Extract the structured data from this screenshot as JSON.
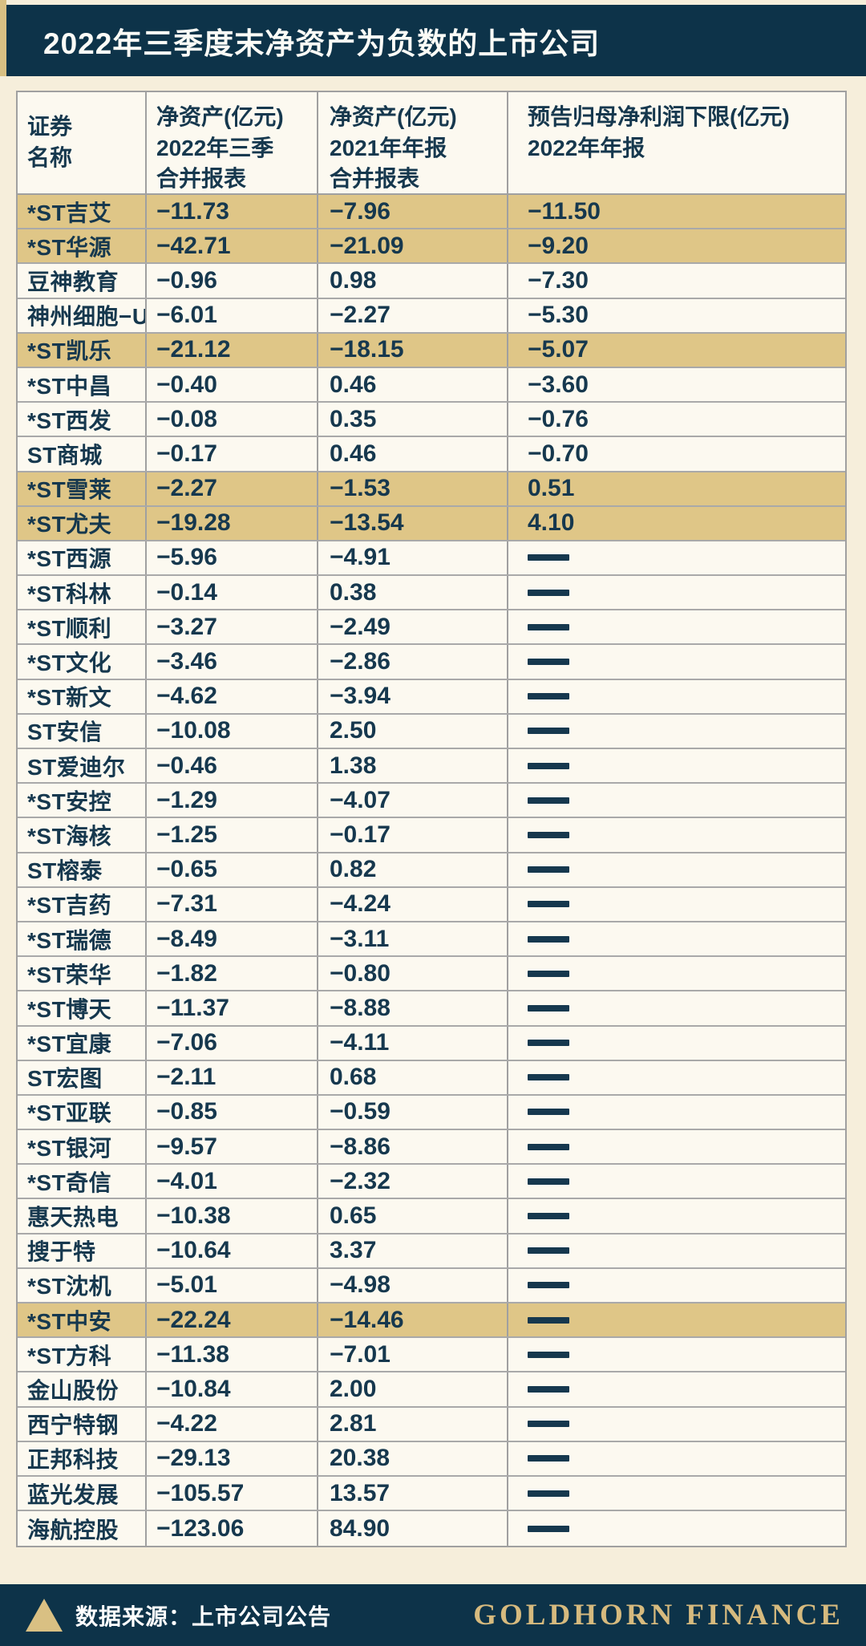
{
  "title": "2022年三季度末净资产为负数的上市公司",
  "chart_data": {
    "type": "table",
    "title": "2022年三季度末净资产为负数的上市公司",
    "columns": [
      "证券\n名称",
      "净资产(亿元)\n2022年三季\n合并报表",
      "净资产(亿元)\n2021年年报\n合并报表",
      "预告归母净利润下限(亿元)\n2022年年报"
    ],
    "no_data_symbol": "—",
    "highlight_color": "#dfc687",
    "rows": [
      {
        "name": "*ST吉艾",
        "na_2022q3": "−11.73",
        "na_2021": "−7.96",
        "forecast": "−11.50",
        "hl": true
      },
      {
        "name": "*ST华源",
        "na_2022q3": "−42.71",
        "na_2021": "−21.09",
        "forecast": "−9.20",
        "hl": true
      },
      {
        "name": "豆神教育",
        "na_2022q3": "−0.96",
        "na_2021": "0.98",
        "forecast": "−7.30",
        "hl": false
      },
      {
        "name": "神州细胞−U",
        "na_2022q3": "−6.01",
        "na_2021": "−2.27",
        "forecast": "−5.30",
        "hl": false
      },
      {
        "name": "*ST凯乐",
        "na_2022q3": "−21.12",
        "na_2021": "−18.15",
        "forecast": "−5.07",
        "hl": true
      },
      {
        "name": "*ST中昌",
        "na_2022q3": "−0.40",
        "na_2021": "0.46",
        "forecast": "−3.60",
        "hl": false
      },
      {
        "name": "*ST西发",
        "na_2022q3": "−0.08",
        "na_2021": "0.35",
        "forecast": "−0.76",
        "hl": false
      },
      {
        "name": "ST商城",
        "na_2022q3": "−0.17",
        "na_2021": "0.46",
        "forecast": "−0.70",
        "hl": false
      },
      {
        "name": "*ST雪莱",
        "na_2022q3": "−2.27",
        "na_2021": "−1.53",
        "forecast": "0.51",
        "hl": true
      },
      {
        "name": "*ST尤夫",
        "na_2022q3": "−19.28",
        "na_2021": "−13.54",
        "forecast": "4.10",
        "hl": true
      },
      {
        "name": "*ST西源",
        "na_2022q3": "−5.96",
        "na_2021": "−4.91",
        "forecast": "—",
        "hl": false
      },
      {
        "name": "*ST科林",
        "na_2022q3": "−0.14",
        "na_2021": "0.38",
        "forecast": "—",
        "hl": false
      },
      {
        "name": "*ST顺利",
        "na_2022q3": "−3.27",
        "na_2021": "−2.49",
        "forecast": "—",
        "hl": false
      },
      {
        "name": "*ST文化",
        "na_2022q3": "−3.46",
        "na_2021": "−2.86",
        "forecast": "—",
        "hl": false
      },
      {
        "name": "*ST新文",
        "na_2022q3": "−4.62",
        "na_2021": "−3.94",
        "forecast": "—",
        "hl": false
      },
      {
        "name": "ST安信",
        "na_2022q3": "−10.08",
        "na_2021": "2.50",
        "forecast": "—",
        "hl": false
      },
      {
        "name": "ST爱迪尔",
        "na_2022q3": "−0.46",
        "na_2021": "1.38",
        "forecast": "—",
        "hl": false
      },
      {
        "name": "*ST安控",
        "na_2022q3": "−1.29",
        "na_2021": "−4.07",
        "forecast": "—",
        "hl": false
      },
      {
        "name": "*ST海核",
        "na_2022q3": "−1.25",
        "na_2021": "−0.17",
        "forecast": "—",
        "hl": false
      },
      {
        "name": "ST榕泰",
        "na_2022q3": "−0.65",
        "na_2021": "0.82",
        "forecast": "—",
        "hl": false
      },
      {
        "name": "*ST吉药",
        "na_2022q3": "−7.31",
        "na_2021": "−4.24",
        "forecast": "—",
        "hl": false
      },
      {
        "name": "*ST瑞德",
        "na_2022q3": "−8.49",
        "na_2021": "−3.11",
        "forecast": "—",
        "hl": false
      },
      {
        "name": "*ST荣华",
        "na_2022q3": "−1.82",
        "na_2021": "−0.80",
        "forecast": "—",
        "hl": false
      },
      {
        "name": "*ST博天",
        "na_2022q3": "−11.37",
        "na_2021": "−8.88",
        "forecast": "—",
        "hl": false
      },
      {
        "name": "*ST宜康",
        "na_2022q3": "−7.06",
        "na_2021": "−4.11",
        "forecast": "—",
        "hl": false
      },
      {
        "name": "ST宏图",
        "na_2022q3": "−2.11",
        "na_2021": "0.68",
        "forecast": "—",
        "hl": false
      },
      {
        "name": "*ST亚联",
        "na_2022q3": "−0.85",
        "na_2021": "−0.59",
        "forecast": "—",
        "hl": false
      },
      {
        "name": "*ST银河",
        "na_2022q3": "−9.57",
        "na_2021": "−8.86",
        "forecast": "—",
        "hl": false
      },
      {
        "name": "*ST奇信",
        "na_2022q3": "−4.01",
        "na_2021": "−2.32",
        "forecast": "—",
        "hl": false
      },
      {
        "name": "惠天热电",
        "na_2022q3": "−10.38",
        "na_2021": "0.65",
        "forecast": "—",
        "hl": false
      },
      {
        "name": "搜于特",
        "na_2022q3": "−10.64",
        "na_2021": "3.37",
        "forecast": "—",
        "hl": false
      },
      {
        "name": "*ST沈机",
        "na_2022q3": "−5.01",
        "na_2021": "−4.98",
        "forecast": "—",
        "hl": false
      },
      {
        "name": "*ST中安",
        "na_2022q3": "−22.24",
        "na_2021": "−14.46",
        "forecast": "—",
        "hl": true
      },
      {
        "name": "*ST方科",
        "na_2022q3": "−11.38",
        "na_2021": "−7.01",
        "forecast": "—",
        "hl": false
      },
      {
        "name": "金山股份",
        "na_2022q3": "−10.84",
        "na_2021": "2.00",
        "forecast": "—",
        "hl": false
      },
      {
        "name": "西宁特钢",
        "na_2022q3": "−4.22",
        "na_2021": "2.81",
        "forecast": "—",
        "hl": false
      },
      {
        "name": "正邦科技",
        "na_2022q3": "−29.13",
        "na_2021": "20.38",
        "forecast": "—",
        "hl": false
      },
      {
        "name": "蓝光发展",
        "na_2022q3": "−105.57",
        "na_2021": "13.57",
        "forecast": "—",
        "hl": false
      },
      {
        "name": "海航控股",
        "na_2022q3": "−123.06",
        "na_2021": "84.90",
        "forecast": "—",
        "hl": false
      }
    ]
  },
  "footer": {
    "source": "数据来源：上市公司公告",
    "brand": "GOLDHORN FINANCE"
  },
  "colors": {
    "navy": "#0d3349",
    "page_bg": "#f6eedb",
    "cell_bg": "#fcf9f0",
    "highlight": "#dfc687",
    "gold_accent": "#d9c083",
    "brand_gold": "#d6ba7e",
    "text": "#16384e",
    "border": "#a0a0a0"
  }
}
